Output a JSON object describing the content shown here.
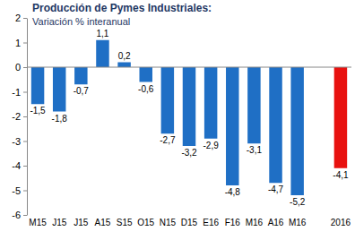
{
  "chart_data": {
    "type": "bar",
    "title": "Producción de Pymes Industriales:",
    "subtitle": "Variación % interanual",
    "categories": [
      "M15",
      "J15",
      "J15",
      "A15",
      "S15",
      "O15",
      "N15",
      "D15",
      "E16",
      "F16",
      "M16",
      "A16",
      "M16",
      null,
      "2016"
    ],
    "values": [
      -1.5,
      -1.8,
      -0.7,
      1.1,
      0.2,
      -0.6,
      -2.7,
      -3.2,
      -2.9,
      -4.8,
      -3.1,
      -4.7,
      -5.2,
      null,
      -4.1
    ],
    "value_labels": [
      "-1,5",
      "-1,8",
      "-0,7",
      "1,1",
      "0,2",
      "-0,6",
      "-2,7",
      "-3,2",
      "-2,9",
      "-4,8",
      "-3,1",
      "-4,7",
      "-5,2",
      null,
      "-4,1"
    ],
    "colors": [
      "#1f6fc5",
      "#1f6fc5",
      "#1f6fc5",
      "#1f6fc5",
      "#1f6fc5",
      "#1f6fc5",
      "#1f6fc5",
      "#1f6fc5",
      "#1f6fc5",
      "#1f6fc5",
      "#1f6fc5",
      "#1f6fc5",
      "#1f6fc5",
      null,
      "#e8110f"
    ],
    "ylim": [
      -6,
      2
    ],
    "yticks": [
      -6,
      -5,
      -4,
      -3,
      -2,
      -1,
      0,
      1,
      2
    ],
    "grid": false,
    "data_labels": true
  }
}
